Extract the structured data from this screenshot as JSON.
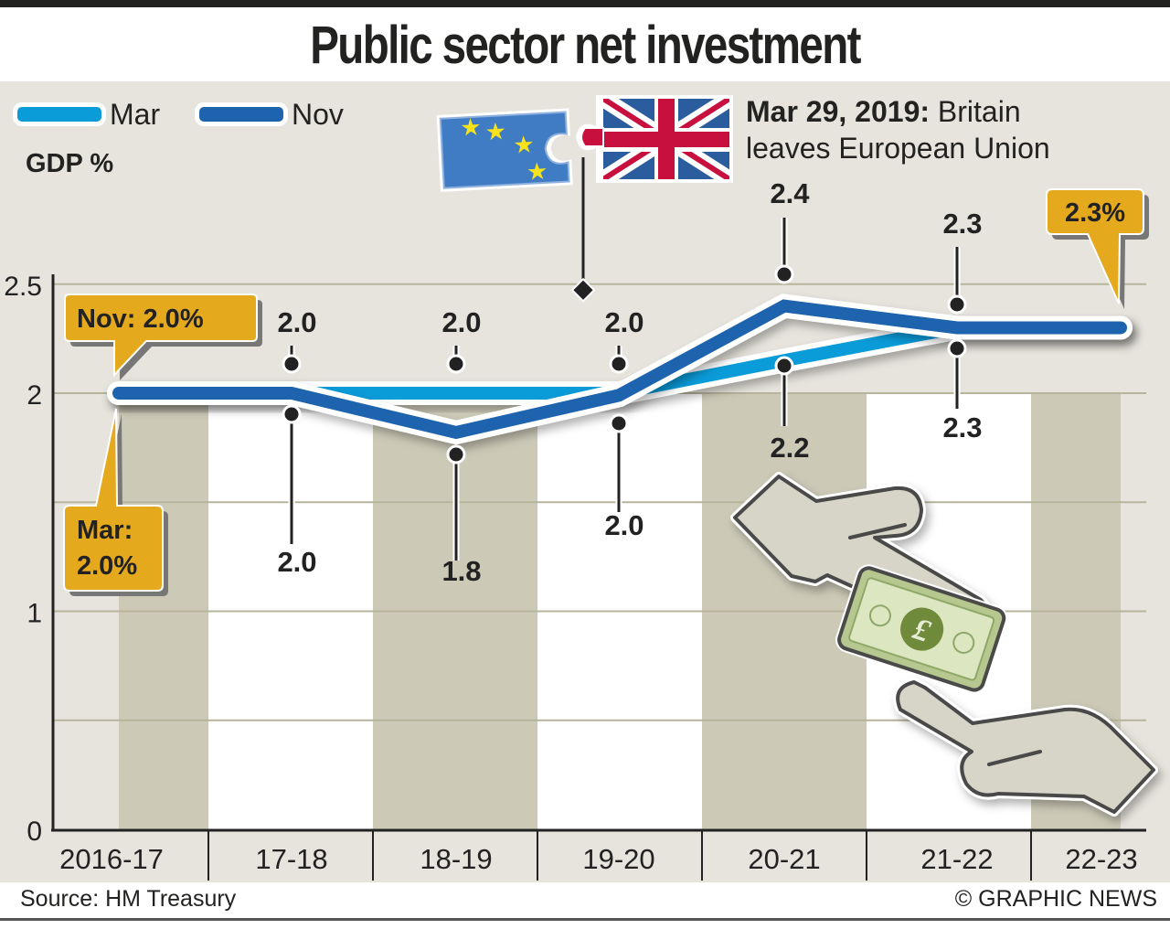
{
  "title": "Public sector net investment",
  "source": "Source: HM Treasury",
  "credit": "© GRAPHIC NEWS",
  "annotation": {
    "date": "Mar 29, 2019:",
    "line1_rest": " Britain",
    "line2": "leaves European Union"
  },
  "callouts": {
    "nov_start": "Nov: 2.0%",
    "mar_start_line1": "Mar:",
    "mar_start_line2": "2.0%",
    "end": "2.3%"
  },
  "icons": {
    "eu_flag": "eu-flag-puzzle-icon",
    "uk_flag": "uk-flag-puzzle-icon",
    "hands_money": "hands-pound-notes-icon"
  },
  "colors": {
    "mar": "#0a9bd9",
    "nov": "#1e63ae",
    "callout": "#e5a91e",
    "band": "#ccc9b7",
    "panel": "#e7e4dd",
    "grid": "#b7b49c"
  },
  "chart_data": {
    "type": "line",
    "title": "Public sector net investment",
    "ylabel": "GDP %",
    "xlabel": "",
    "ylim": [
      0,
      2.5
    ],
    "yticks": [
      0,
      1,
      2,
      2.5
    ],
    "ytick_labels": [
      "0",
      "1",
      "2",
      "2.5"
    ],
    "grid_values": [
      0.5,
      1,
      1.5,
      2,
      2.5
    ],
    "grid": true,
    "legend_position": "top-left",
    "categories": [
      "2016-17",
      "17-18",
      "18-19",
      "19-20",
      "20-21",
      "21-22",
      "22-23"
    ],
    "series": [
      {
        "name": "Mar",
        "values": [
          2.0,
          2.0,
          2.0,
          2.0,
          2.2,
          2.3,
          null
        ],
        "labels": [
          null,
          "2.0",
          "2.0",
          "2.0",
          "2.2",
          "2.3",
          null
        ]
      },
      {
        "name": "Nov",
        "values": [
          2.0,
          1.95,
          1.8,
          2.0,
          2.4,
          2.3,
          2.3
        ],
        "labels": [
          null,
          "2.0",
          "1.8",
          "2.0",
          "2.4",
          "2.3",
          null
        ]
      }
    ],
    "plot_values": {
      "Mar": [
        2.0,
        2.0,
        2.0,
        2.0,
        2.15,
        2.3,
        2.3
      ],
      "Nov": [
        2.0,
        2.0,
        1.82,
        1.99,
        2.4,
        2.3,
        2.3
      ]
    },
    "annotations": [
      "Mar 29, 2019: Britain leaves European Union"
    ]
  }
}
